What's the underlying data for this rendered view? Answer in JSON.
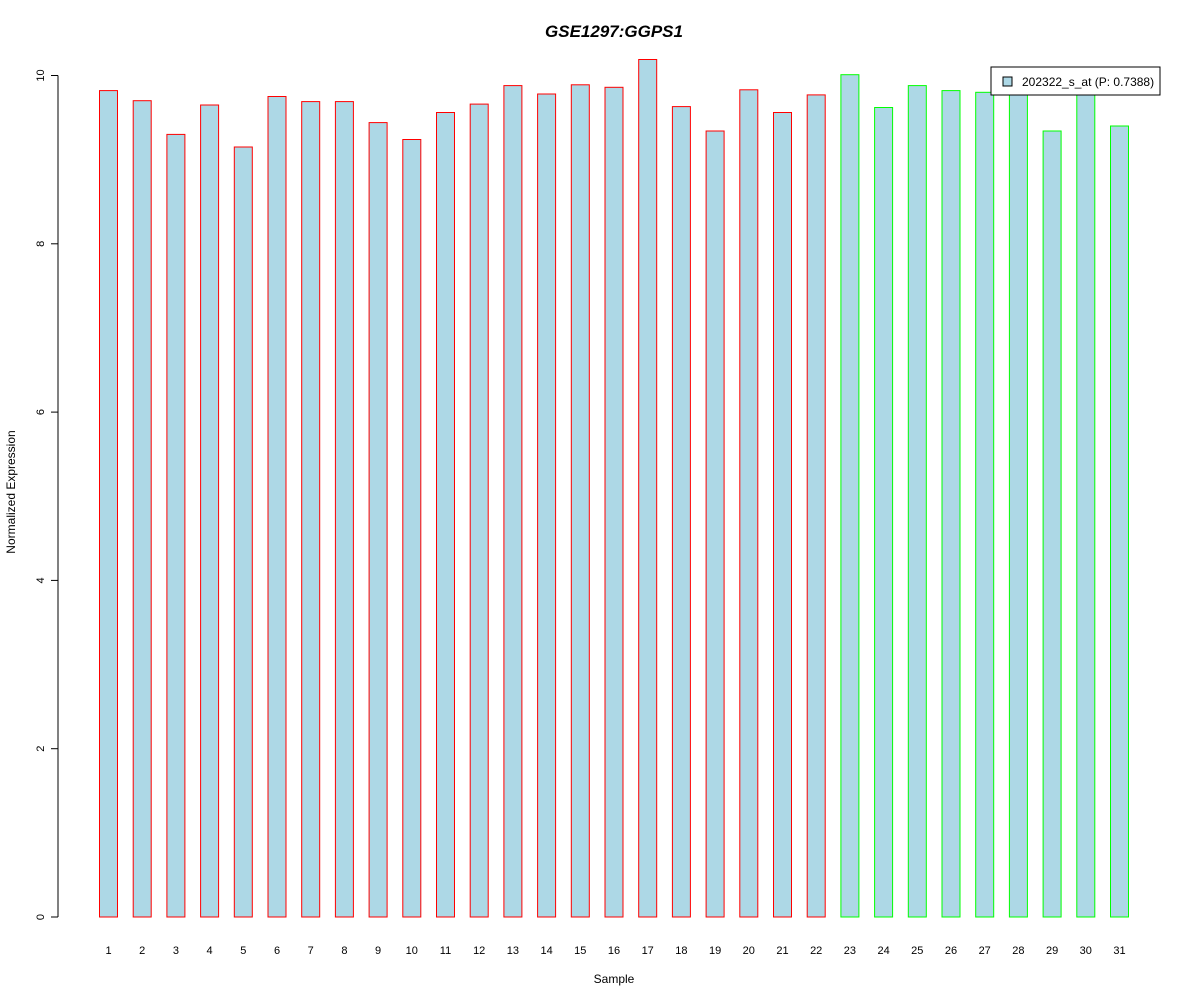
{
  "chart_data": {
    "type": "bar",
    "title": "GSE1297:GGPS1",
    "xlabel": "Sample",
    "ylabel": "Normalized Expression",
    "ylim": [
      0,
      10.2
    ],
    "yticks": [
      0,
      2,
      4,
      6,
      8,
      10
    ],
    "grid": false,
    "legend_position": "top-right",
    "categories": [
      "1",
      "2",
      "3",
      "4",
      "5",
      "6",
      "7",
      "8",
      "9",
      "10",
      "11",
      "12",
      "13",
      "14",
      "15",
      "16",
      "17",
      "18",
      "19",
      "20",
      "21",
      "22",
      "23",
      "24",
      "25",
      "26",
      "27",
      "28",
      "29",
      "30",
      "31"
    ],
    "series": [
      {
        "name": "202322_s_at (P: 0.7388)",
        "values": [
          9.82,
          9.7,
          9.3,
          9.65,
          9.15,
          9.75,
          9.69,
          9.69,
          9.44,
          9.24,
          9.56,
          9.66,
          9.88,
          9.78,
          9.89,
          9.86,
          10.19,
          9.63,
          9.34,
          9.83,
          9.56,
          9.77,
          10.01,
          9.62,
          9.88,
          9.82,
          9.8,
          9.78,
          9.34,
          9.78,
          9.4
        ],
        "group": [
          1,
          1,
          1,
          1,
          1,
          1,
          1,
          1,
          1,
          1,
          1,
          1,
          1,
          1,
          1,
          1,
          1,
          1,
          1,
          1,
          1,
          1,
          2,
          2,
          2,
          2,
          2,
          2,
          2,
          2,
          2
        ]
      }
    ],
    "colors": {
      "fill": "#add8e6",
      "group_1_border": "#ff0000",
      "group_2_border": "#00ff00",
      "title": "#0000cd",
      "axis": "#000000"
    }
  }
}
